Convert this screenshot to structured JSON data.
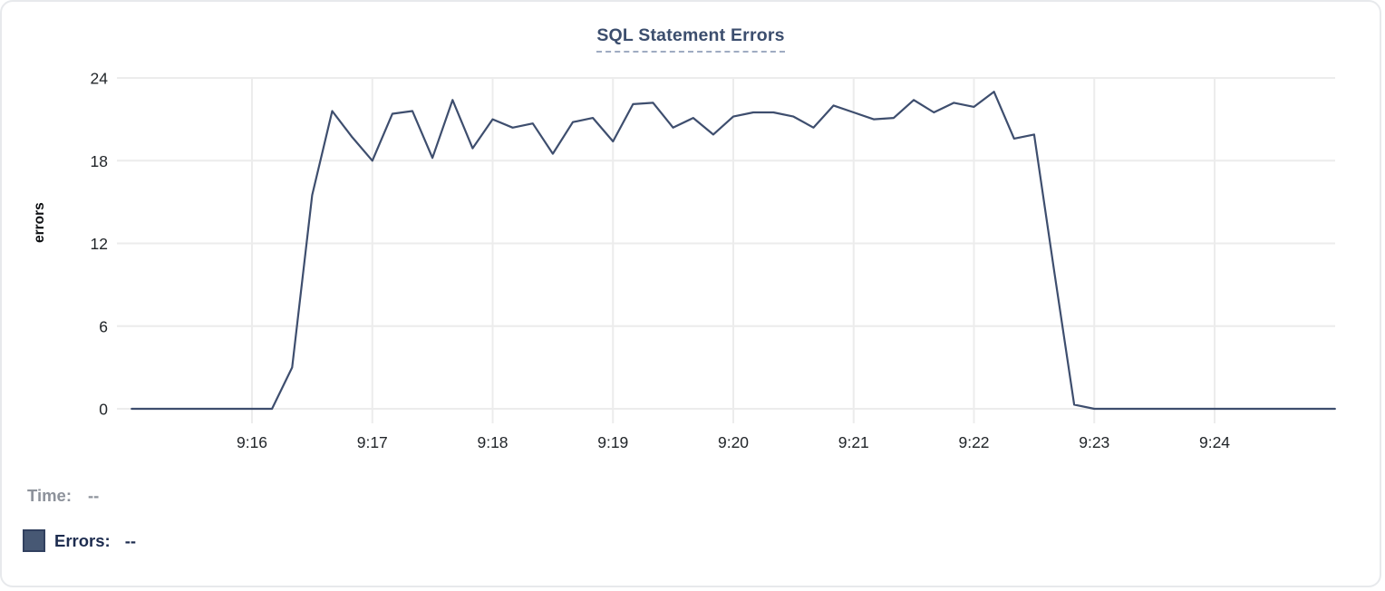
{
  "chart_data": {
    "type": "line",
    "title": "SQL Statement Errors",
    "xlabel": "",
    "ylabel": "errors",
    "ylim": [
      0,
      24
    ],
    "y_ticks": [
      0,
      6,
      12,
      18,
      24
    ],
    "x_ticks": [
      "9:16",
      "9:17",
      "9:18",
      "9:19",
      "9:20",
      "9:21",
      "9:22",
      "9:23",
      "9:24"
    ],
    "grid": true,
    "legend_position": "bottom-left",
    "sample_interval_seconds": 10,
    "x": [
      "9:15:00",
      "9:15:10",
      "9:15:20",
      "9:15:30",
      "9:15:40",
      "9:15:50",
      "9:16:00",
      "9:16:10",
      "9:16:20",
      "9:16:30",
      "9:16:40",
      "9:16:50",
      "9:17:00",
      "9:17:10",
      "9:17:20",
      "9:17:30",
      "9:17:40",
      "9:17:50",
      "9:18:00",
      "9:18:10",
      "9:18:20",
      "9:18:30",
      "9:18:40",
      "9:18:50",
      "9:19:00",
      "9:19:10",
      "9:19:20",
      "9:19:30",
      "9:19:40",
      "9:19:50",
      "9:20:00",
      "9:20:10",
      "9:20:20",
      "9:20:30",
      "9:20:40",
      "9:20:50",
      "9:21:00",
      "9:21:10",
      "9:21:20",
      "9:21:30",
      "9:21:40",
      "9:21:50",
      "9:22:00",
      "9:22:10",
      "9:22:20",
      "9:22:30",
      "9:22:40",
      "9:22:50",
      "9:23:00",
      "9:23:10",
      "9:23:20",
      "9:23:30",
      "9:23:40",
      "9:23:50",
      "9:24:00",
      "9:24:10",
      "9:24:20",
      "9:24:30",
      "9:24:40",
      "9:24:50",
      "9:25:00"
    ],
    "series": [
      {
        "name": "Errors",
        "color": "#3e4e6e",
        "values": [
          0,
          0,
          0,
          0,
          0,
          0,
          0,
          0,
          3,
          15.5,
          21.6,
          19.7,
          18,
          21.4,
          21.6,
          18.2,
          22.4,
          18.9,
          21,
          20.4,
          20.7,
          18.5,
          20.8,
          21.1,
          19.4,
          22.1,
          22.2,
          20.4,
          21.1,
          19.9,
          21.2,
          21.5,
          21.5,
          21.2,
          20.4,
          22,
          21.5,
          21,
          21.1,
          22.4,
          21.5,
          22.2,
          21.9,
          23,
          19.6,
          19.9,
          10,
          0.3,
          0,
          0,
          0,
          0,
          0,
          0,
          0,
          0,
          0,
          0,
          0,
          0,
          0
        ]
      }
    ]
  },
  "tooltip": {
    "time_label": "Time:",
    "time_value": "--",
    "errors_label": "Errors:",
    "errors_value": "--",
    "swatch_color": "#475874"
  },
  "colors": {
    "title": "#3c4e6e",
    "gridline": "#ececec",
    "line": "#3e4e6e",
    "legend_swatch": "#475874"
  }
}
